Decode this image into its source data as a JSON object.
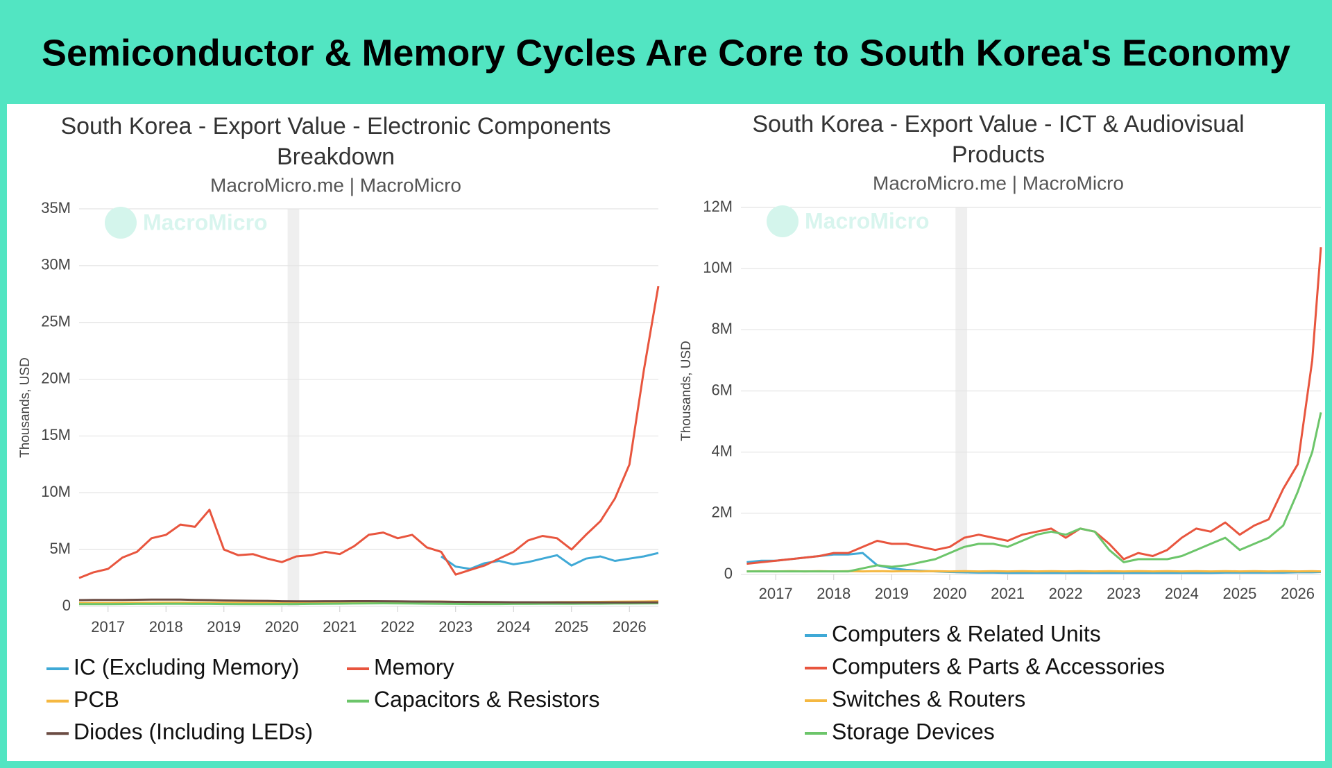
{
  "title": "Semiconductor & Memory Cycles Are Core to South Korea's Economy",
  "chart_data": [
    {
      "type": "line",
      "title": "South Korea - Export Value - Electronic Components Breakdown",
      "subtitle": "MacroMicro.me | MacroMicro",
      "watermark": "MacroMicro",
      "ylabel": "Thousands, USD",
      "xlim": [
        2016.5,
        2026.5
      ],
      "xticks": [
        2017,
        2018,
        2019,
        2020,
        2021,
        2022,
        2023,
        2024,
        2025,
        2026
      ],
      "ylim": [
        0,
        35000000
      ],
      "yticks": [
        0,
        {
          "value": 5000000,
          "label": "5M"
        },
        {
          "value": 10000000,
          "label": "10M"
        },
        {
          "value": 15000000,
          "label": "15M"
        },
        {
          "value": 20000000,
          "label": "20M"
        },
        {
          "value": 25000000,
          "label": "25M"
        },
        {
          "value": 30000000,
          "label": "30M"
        },
        {
          "value": 35000000,
          "label": "35M"
        }
      ],
      "grid": true,
      "shade": [
        2020.1,
        2020.3
      ],
      "x": [
        2016.5,
        2016.75,
        2017,
        2017.25,
        2017.5,
        2017.75,
        2018,
        2018.25,
        2018.5,
        2018.75,
        2019,
        2019.25,
        2019.5,
        2019.75,
        2020,
        2020.25,
        2020.5,
        2020.75,
        2021,
        2021.25,
        2021.5,
        2021.75,
        2022,
        2022.25,
        2022.5,
        2022.75,
        2023,
        2023.25,
        2023.5,
        2023.75,
        2024,
        2024.25,
        2024.5,
        2024.75,
        2025,
        2025.25,
        2025.5,
        2025.75,
        2026,
        2026.25,
        2026.5
      ],
      "series": [
        {
          "name": "IC (Excluding Memory)",
          "color": "#3fa9d6",
          "values": [
            null,
            null,
            null,
            null,
            null,
            null,
            null,
            null,
            null,
            null,
            null,
            null,
            null,
            null,
            null,
            null,
            null,
            null,
            null,
            null,
            null,
            null,
            null,
            null,
            null,
            4400000,
            3500000,
            3300000,
            3800000,
            4000000,
            3700000,
            3900000,
            4200000,
            4500000,
            3600000,
            4200000,
            4400000,
            4000000,
            4200000,
            4400000,
            4700000
          ]
        },
        {
          "name": "Memory",
          "color": "#e8553e",
          "values": [
            2500000,
            3000000,
            3300000,
            4300000,
            4800000,
            6000000,
            6300000,
            7200000,
            7000000,
            8500000,
            5000000,
            4500000,
            4600000,
            4200000,
            3900000,
            4400000,
            4500000,
            4800000,
            4600000,
            5300000,
            6300000,
            6500000,
            6000000,
            6300000,
            5200000,
            4800000,
            2800000,
            3200000,
            3600000,
            4200000,
            4800000,
            5800000,
            6200000,
            6000000,
            5000000,
            6300000,
            7500000,
            9500000,
            12500000,
            20800000,
            28200000
          ]
        },
        {
          "name": "PCB",
          "color": "#f5b841",
          "values": [
            300000,
            300000,
            300000,
            310000,
            320000,
            320000,
            330000,
            330000,
            320000,
            320000,
            310000,
            310000,
            300000,
            300000,
            300000,
            310000,
            320000,
            330000,
            340000,
            350000,
            360000,
            380000,
            400000,
            420000,
            430000,
            420000,
            400000,
            380000,
            360000,
            350000,
            350000,
            350000,
            360000,
            370000,
            380000,
            390000,
            400000,
            410000,
            420000,
            430000,
            450000
          ]
        },
        {
          "name": "Capacitors & Resistors",
          "color": "#6cc56a",
          "values": [
            200000,
            200000,
            200000,
            210000,
            220000,
            220000,
            230000,
            230000,
            220000,
            220000,
            210000,
            200000,
            200000,
            200000,
            200000,
            210000,
            220000,
            230000,
            240000,
            250000,
            260000,
            270000,
            260000,
            250000,
            240000,
            230000,
            220000,
            210000,
            210000,
            210000,
            220000,
            220000,
            230000,
            230000,
            230000,
            240000,
            240000,
            250000,
            250000,
            260000,
            270000
          ]
        },
        {
          "name": "Diodes (Including LEDs)",
          "color": "#6b4c43",
          "values": [
            550000,
            560000,
            560000,
            570000,
            580000,
            600000,
            600000,
            590000,
            570000,
            550000,
            520000,
            500000,
            490000,
            480000,
            450000,
            440000,
            440000,
            450000,
            450000,
            460000,
            460000,
            450000,
            440000,
            430000,
            420000,
            410000,
            400000,
            390000,
            380000,
            370000,
            360000,
            360000,
            350000,
            350000,
            340000,
            340000,
            340000,
            340000,
            340000,
            350000,
            350000
          ]
        }
      ]
    },
    {
      "type": "line",
      "title": "South Korea - Export Value - ICT & Audiovisual Products",
      "subtitle": "MacroMicro.me | MacroMicro",
      "watermark": "MacroMicro",
      "ylabel": "Thousands, USD",
      "xlim": [
        2016.4,
        2026.4
      ],
      "xticks": [
        2017,
        2018,
        2019,
        2020,
        2021,
        2022,
        2023,
        2024,
        2025,
        2026
      ],
      "ylim": [
        0,
        12000000
      ],
      "yticks": [
        0,
        {
          "value": 2000000,
          "label": "2M"
        },
        {
          "value": 4000000,
          "label": "4M"
        },
        {
          "value": 6000000,
          "label": "6M"
        },
        {
          "value": 8000000,
          "label": "8M"
        },
        {
          "value": 10000000,
          "label": "10M"
        },
        {
          "value": 12000000,
          "label": "12M"
        }
      ],
      "grid": true,
      "shade": [
        2020.1,
        2020.3
      ],
      "x": [
        2016.5,
        2016.75,
        2017,
        2017.25,
        2017.5,
        2017.75,
        2018,
        2018.25,
        2018.5,
        2018.75,
        2019,
        2019.25,
        2019.5,
        2019.75,
        2020,
        2020.25,
        2020.5,
        2020.75,
        2021,
        2021.25,
        2021.5,
        2021.75,
        2022,
        2022.25,
        2022.5,
        2022.75,
        2023,
        2023.25,
        2023.5,
        2023.75,
        2024,
        2024.25,
        2024.5,
        2024.75,
        2025,
        2025.25,
        2025.5,
        2025.75,
        2026,
        2026.25,
        2026.4
      ],
      "series": [
        {
          "name": "Computers & Related Units",
          "color": "#3fa9d6",
          "values": [
            400000,
            450000,
            450000,
            500000,
            550000,
            600000,
            650000,
            650000,
            700000,
            300000,
            200000,
            150000,
            120000,
            100000,
            80000,
            70000,
            60000,
            60000,
            50000,
            50000,
            50000,
            50000,
            50000,
            50000,
            50000,
            50000,
            50000,
            50000,
            50000,
            50000,
            50000,
            50000,
            50000,
            60000,
            60000,
            60000,
            60000,
            60000,
            70000,
            70000,
            80000
          ]
        },
        {
          "name": "Computers & Parts & Accessories",
          "color": "#e8553e",
          "values": [
            350000,
            400000,
            450000,
            500000,
            550000,
            600000,
            700000,
            700000,
            900000,
            1100000,
            1000000,
            1000000,
            900000,
            800000,
            900000,
            1200000,
            1300000,
            1200000,
            1100000,
            1300000,
            1400000,
            1500000,
            1200000,
            1500000,
            1400000,
            1000000,
            500000,
            700000,
            600000,
            800000,
            1200000,
            1500000,
            1400000,
            1700000,
            1300000,
            1600000,
            1800000,
            2800000,
            3600000,
            7000000,
            10700000
          ]
        },
        {
          "name": "Switches & Routers",
          "color": "#f5b841",
          "values": [
            100000,
            110000,
            100000,
            110000,
            100000,
            110000,
            100000,
            110000,
            100000,
            110000,
            100000,
            110000,
            100000,
            110000,
            100000,
            110000,
            100000,
            110000,
            100000,
            110000,
            100000,
            110000,
            100000,
            110000,
            100000,
            110000,
            100000,
            110000,
            100000,
            110000,
            100000,
            110000,
            100000,
            110000,
            100000,
            110000,
            100000,
            110000,
            100000,
            110000,
            100000
          ]
        },
        {
          "name": "Storage Devices",
          "color": "#6cc56a",
          "values": [
            100000,
            100000,
            100000,
            100000,
            100000,
            100000,
            100000,
            100000,
            200000,
            300000,
            250000,
            300000,
            400000,
            500000,
            700000,
            900000,
            1000000,
            1000000,
            900000,
            1100000,
            1300000,
            1400000,
            1300000,
            1500000,
            1400000,
            800000,
            400000,
            500000,
            500000,
            500000,
            600000,
            800000,
            1000000,
            1200000,
            800000,
            1000000,
            1200000,
            1600000,
            2700000,
            4000000,
            5300000
          ]
        }
      ]
    }
  ]
}
